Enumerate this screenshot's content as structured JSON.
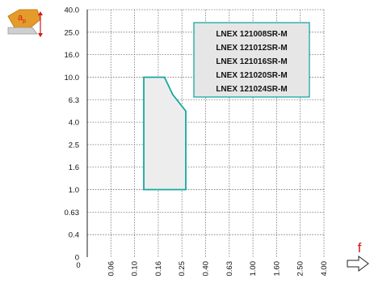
{
  "icon": {
    "name": "insert-depth-of-cut-icon",
    "label": "a",
    "label_sub": "p",
    "arrow_color": "#d11a1a"
  },
  "f_axis": {
    "label": "f"
  },
  "chart_data": {
    "type": "area",
    "title": "",
    "xlabel": "f",
    "ylabel": "ap",
    "x_ticks": [
      "0",
      "0.06",
      "0.10",
      "0.16",
      "0.25",
      "0.40",
      "0.63",
      "1.00",
      "1.60",
      "2.50",
      "4.00"
    ],
    "y_ticks": [
      "40.0",
      "25.0",
      "16.0",
      "10.0",
      "6.3",
      "4.0",
      "2.5",
      "1.6",
      "1.0",
      "0.63",
      "0.4",
      "0"
    ],
    "grid": true,
    "legend": {
      "placement": "top-right",
      "entries": [
        "LNEX 121008SR-M",
        "LNEX 121012SR-M",
        "LNEX 121016SR-M",
        "LNEX 121020SR-M",
        "LNEX 121024SR-M"
      ]
    },
    "series": [
      {
        "name": "",
        "polygon": [
          {
            "f": 0.12,
            "ap": 10.0
          },
          {
            "f": 0.18,
            "ap": 10.0
          },
          {
            "f": 0.21,
            "ap": 7.0
          },
          {
            "f": 0.27,
            "ap": 5.0
          },
          {
            "f": 0.27,
            "ap": 1.0
          },
          {
            "f": 0.12,
            "ap": 1.0
          }
        ],
        "stroke": "#16a9a0",
        "fill": "#ededed"
      }
    ],
    "colors": {
      "accent": "#16a9a0",
      "legend_border": "#16a9a0",
      "legend_fill": "#e6e6e6",
      "grid": "#777777",
      "axis": "#222222"
    }
  }
}
